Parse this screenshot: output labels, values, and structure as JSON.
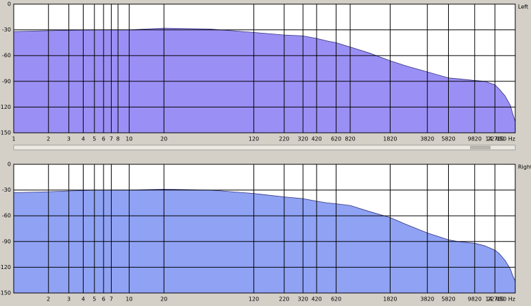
{
  "chart_data": [
    {
      "type": "area",
      "channel_label": "Left",
      "color": "#9a8ff4",
      "log_x": true,
      "grid": true,
      "x": [
        1,
        2,
        5,
        10,
        20,
        50,
        120,
        220,
        320,
        420,
        520,
        620,
        820,
        1200,
        1820,
        2500,
        3820,
        5820,
        7000,
        9820,
        12000,
        14700,
        16000,
        18000,
        20000,
        21000,
        22050
      ],
      "values": [
        -32,
        -31,
        -30,
        -30,
        -28,
        -29,
        -33,
        -36,
        -37,
        -40,
        -43,
        -45,
        -50,
        -57,
        -66,
        -72,
        -79,
        -86,
        -87,
        -89,
        -90,
        -94,
        -99,
        -107,
        -118,
        -128,
        -137
      ],
      "xlim": [
        1,
        22050
      ],
      "ylim": [
        -150,
        0
      ],
      "yticks": [
        0,
        -30,
        -60,
        -90,
        -120,
        -150
      ],
      "xticks": [
        1,
        2,
        3,
        4,
        5,
        6,
        7,
        8,
        10,
        20,
        120,
        220,
        320,
        420,
        620,
        820,
        1820,
        3820,
        5820,
        9820,
        {
          "value": 14700,
          "label": "14 700"
        },
        {
          "value": 22050,
          "label": "22 050 Hz"
        }
      ]
    },
    {
      "type": "area",
      "channel_label": "Right",
      "color": "#8fa2f4",
      "log_x": true,
      "grid": true,
      "x": [
        1,
        2,
        5,
        10,
        20,
        50,
        120,
        220,
        320,
        420,
        520,
        620,
        820,
        1200,
        1820,
        2500,
        3820,
        5820,
        7000,
        9820,
        12000,
        14700,
        16000,
        18000,
        20000,
        21000,
        22050
      ],
      "values": [
        -33,
        -32,
        -30,
        -30,
        -29,
        -30,
        -34,
        -38,
        -40,
        -43,
        -45,
        -46,
        -48,
        -55,
        -62,
        -70,
        -80,
        -88,
        -90,
        -92,
        -95,
        -100,
        -104,
        -112,
        -122,
        -130,
        -136
      ],
      "xlim": [
        1,
        22050
      ],
      "ylim": [
        -150,
        0
      ],
      "yticks": [
        0,
        -30,
        -60,
        -90,
        -120,
        -150
      ],
      "xticks": [
        2,
        3,
        4,
        5,
        6,
        7,
        10,
        20,
        120,
        220,
        320,
        420,
        620,
        1820,
        3820,
        5820,
        9820,
        {
          "value": 14700,
          "label": "14 700"
        },
        {
          "value": 22050,
          "label": "22 050 Hz"
        }
      ]
    }
  ]
}
